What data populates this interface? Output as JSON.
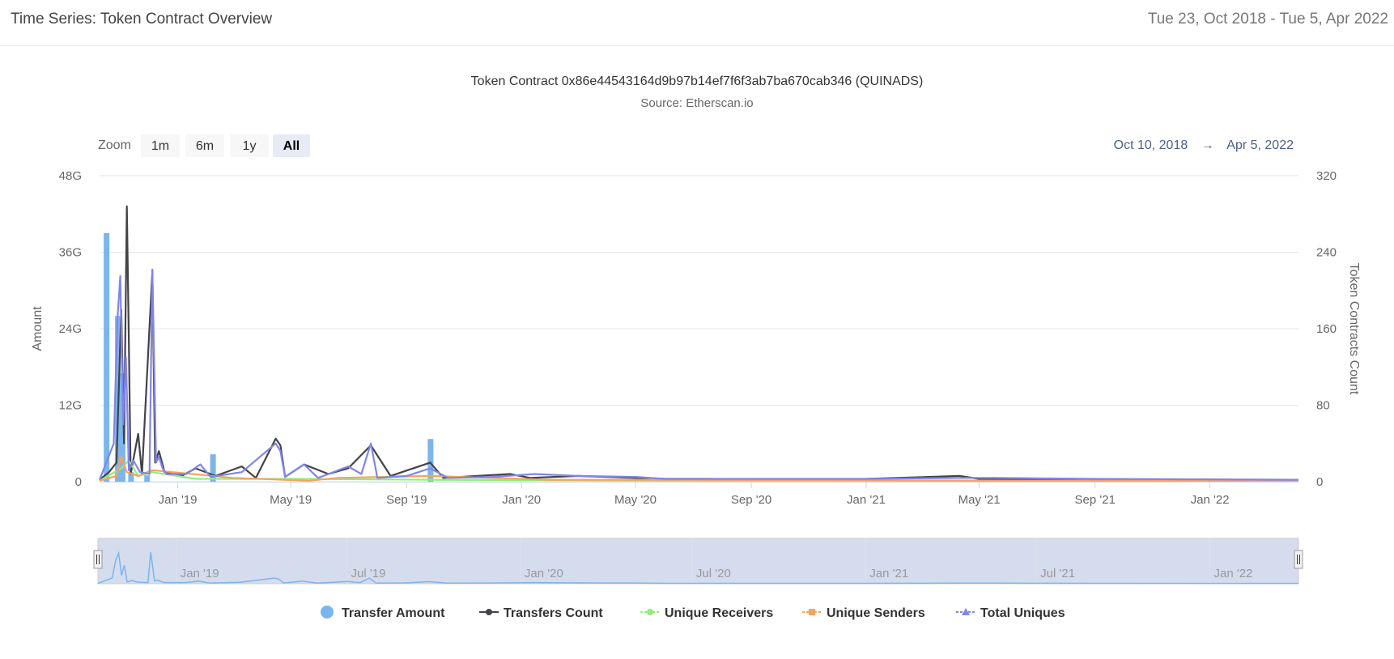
{
  "header": {
    "title": "Time Series: Token Contract Overview",
    "date_range": "Tue 23, Oct 2018 - Tue 5, Apr 2022"
  },
  "zoom": {
    "label": "Zoom",
    "buttons": [
      "1m",
      "6m",
      "1y",
      "All"
    ],
    "active": "All"
  },
  "range_display": {
    "from": "Oct 10, 2018",
    "arrow": "→",
    "to": "Apr 5, 2022"
  },
  "colors": {
    "transfer_amount": "#7cb5ec",
    "transfers_count": "#434348",
    "unique_receivers": "#90ed7d",
    "unique_senders": "#f7a35c",
    "total_uniques": "#8085e9",
    "navigator_mask": "#ccd6eb"
  },
  "chart_data": {
    "type": "line",
    "title": "Token Contract 0x86e44543164d9b97b14ef7f6f3ab7ba670cab346 (QUINADS)",
    "subtitle": "Source: Etherscan.io",
    "x_range": [
      "2018-10-10",
      "2022-04-05"
    ],
    "x_ticks": [
      "Jan '19",
      "May '19",
      "Sep '19",
      "Jan '20",
      "May '20",
      "Sep '20",
      "Jan '21",
      "May '21",
      "Sep '21",
      "Jan '22"
    ],
    "y_left": {
      "label": "Amount",
      "ticks": [
        "0",
        "12G",
        "24G",
        "36G",
        "48G"
      ],
      "range": [
        0,
        48000000000
      ]
    },
    "y_right": {
      "label": "Token Contracts Count",
      "ticks": [
        "0",
        "80",
        "160",
        "240",
        "320"
      ],
      "range": [
        0,
        320
      ]
    },
    "navigator_ticks": [
      "Jan '19",
      "Jul '19",
      "Jan '20",
      "Jul '20",
      "Jan '21",
      "Jul '21",
      "Jan '22"
    ],
    "legend_position": "bottom",
    "grid": true,
    "series": [
      {
        "name": "Transfer Amount",
        "axis": "left",
        "kind": "column",
        "points": [
          [
            "2018-10-17",
            39000000000
          ],
          [
            "2018-10-29",
            26000000000
          ],
          [
            "2018-11-03",
            17000000000
          ],
          [
            "2018-11-12",
            1500000000
          ],
          [
            "2018-11-29",
            1000000000
          ],
          [
            "2019-02-07",
            4300000000
          ],
          [
            "2019-09-26",
            6700000000
          ]
        ]
      },
      {
        "name": "Transfers Count",
        "axis": "right",
        "kind": "line",
        "points": [
          [
            "2018-10-10",
            2
          ],
          [
            "2018-10-20",
            10
          ],
          [
            "2018-10-28",
            20
          ],
          [
            "2018-11-02",
            180
          ],
          [
            "2018-11-05",
            40
          ],
          [
            "2018-11-08",
            288
          ],
          [
            "2018-11-10",
            150
          ],
          [
            "2018-11-12",
            8
          ],
          [
            "2018-11-20",
            50
          ],
          [
            "2018-11-24",
            8
          ],
          [
            "2018-12-05",
            220
          ],
          [
            "2018-12-08",
            20
          ],
          [
            "2018-12-12",
            32
          ],
          [
            "2018-12-18",
            10
          ],
          [
            "2019-01-05",
            6
          ],
          [
            "2019-01-20",
            14
          ],
          [
            "2019-02-10",
            6
          ],
          [
            "2019-03-10",
            16
          ],
          [
            "2019-03-25",
            4
          ],
          [
            "2019-04-15",
            45
          ],
          [
            "2019-04-20",
            38
          ],
          [
            "2019-04-25",
            5
          ],
          [
            "2019-05-15",
            18
          ],
          [
            "2019-06-10",
            8
          ],
          [
            "2019-07-01",
            14
          ],
          [
            "2019-07-25",
            38
          ],
          [
            "2019-08-15",
            6
          ],
          [
            "2019-09-26",
            20
          ],
          [
            "2019-10-10",
            4
          ],
          [
            "2019-12-20",
            8
          ],
          [
            "2020-01-10",
            4
          ],
          [
            "2020-03-01",
            6
          ],
          [
            "2020-06-01",
            3
          ],
          [
            "2020-07-15",
            3
          ],
          [
            "2020-12-01",
            2
          ],
          [
            "2021-04-10",
            6
          ],
          [
            "2021-05-01",
            3
          ],
          [
            "2021-09-01",
            2
          ],
          [
            "2022-04-05",
            2
          ]
        ]
      },
      {
        "name": "Unique Receivers",
        "axis": "right",
        "kind": "line",
        "points": [
          [
            "2018-10-10",
            1
          ],
          [
            "2018-11-02",
            14
          ],
          [
            "2018-11-10",
            22
          ],
          [
            "2018-11-20",
            6
          ],
          [
            "2018-12-05",
            10
          ],
          [
            "2019-01-20",
            3
          ],
          [
            "2019-05-01",
            3
          ],
          [
            "2019-09-26",
            2
          ],
          [
            "2020-06-01",
            1
          ],
          [
            "2022-04-05",
            1
          ]
        ]
      },
      {
        "name": "Unique Senders",
        "axis": "right",
        "kind": "line",
        "points": [
          [
            "2018-10-10",
            1
          ],
          [
            "2018-10-28",
            6
          ],
          [
            "2018-11-02",
            26
          ],
          [
            "2018-11-08",
            10
          ],
          [
            "2018-11-20",
            6
          ],
          [
            "2018-12-05",
            12
          ],
          [
            "2019-03-01",
            4
          ],
          [
            "2019-05-20",
            1
          ],
          [
            "2019-06-20",
            4
          ],
          [
            "2019-09-26",
            6
          ],
          [
            "2020-02-01",
            2
          ],
          [
            "2020-06-01",
            2
          ],
          [
            "2021-06-01",
            1
          ],
          [
            "2022-04-05",
            1
          ]
        ]
      },
      {
        "name": "Total Uniques",
        "axis": "right",
        "kind": "line",
        "points": [
          [
            "2018-10-10",
            2
          ],
          [
            "2018-10-25",
            40
          ],
          [
            "2018-10-29",
            170
          ],
          [
            "2018-11-01",
            215
          ],
          [
            "2018-11-04",
            60
          ],
          [
            "2018-11-07",
            130
          ],
          [
            "2018-11-10",
            12
          ],
          [
            "2018-11-15",
            22
          ],
          [
            "2018-11-22",
            10
          ],
          [
            "2018-12-02",
            8
          ],
          [
            "2018-12-05",
            222
          ],
          [
            "2018-12-09",
            20
          ],
          [
            "2018-12-12",
            26
          ],
          [
            "2018-12-16",
            14
          ],
          [
            "2018-12-20",
            8
          ],
          [
            "2019-01-10",
            8
          ],
          [
            "2019-01-25",
            18
          ],
          [
            "2019-02-05",
            5
          ],
          [
            "2019-03-10",
            10
          ],
          [
            "2019-04-15",
            40
          ],
          [
            "2019-04-20",
            32
          ],
          [
            "2019-04-25",
            5
          ],
          [
            "2019-05-15",
            18
          ],
          [
            "2019-05-30",
            4
          ],
          [
            "2019-06-10",
            8
          ],
          [
            "2019-07-01",
            16
          ],
          [
            "2019-07-15",
            8
          ],
          [
            "2019-07-25",
            40
          ],
          [
            "2019-08-01",
            4
          ],
          [
            "2019-09-01",
            6
          ],
          [
            "2019-09-26",
            14
          ],
          [
            "2019-10-15",
            4
          ],
          [
            "2019-12-01",
            5
          ],
          [
            "2020-01-15",
            8
          ],
          [
            "2020-03-01",
            6
          ],
          [
            "2020-05-01",
            5
          ],
          [
            "2020-06-01",
            3
          ],
          [
            "2020-09-01",
            3
          ],
          [
            "2021-01-01",
            3
          ],
          [
            "2021-04-15",
            4
          ],
          [
            "2021-05-15",
            4
          ],
          [
            "2021-09-01",
            3
          ],
          [
            "2022-04-05",
            2
          ]
        ]
      }
    ]
  }
}
